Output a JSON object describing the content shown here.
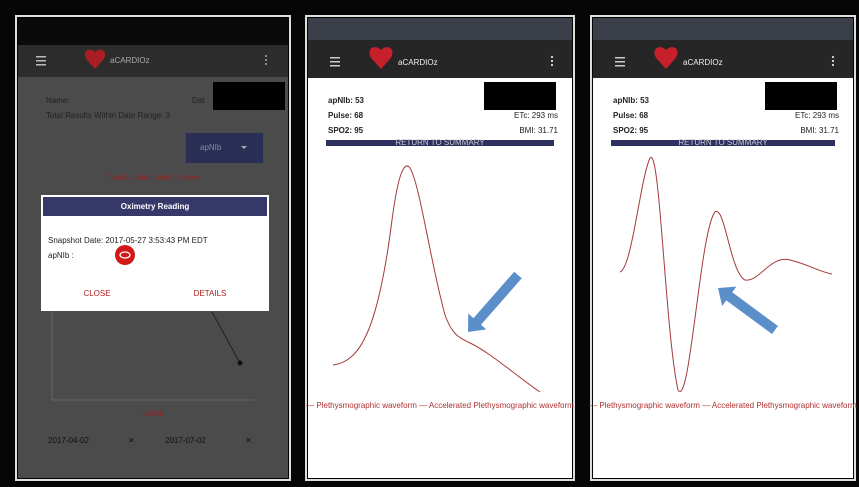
{
  "screens": [
    {
      "app_title": "aCARDIOz",
      "name_label": "Name:",
      "date_label": "Dat",
      "results_label": "Total Results Within Date Range: 3",
      "dropdown": "apNIb",
      "hint": "Touch a data point to view",
      "dialog": {
        "title": "Oximetry Reading",
        "snapshot": "Snapshot Date: 2017-05-27 3:53:43 PM EDT",
        "field": "apNIb :",
        "close": "CLOSE",
        "details": "DETAILS"
      },
      "axis_label": "apNIb",
      "start_date": "2017-04-02",
      "end_date": "2017-07-02",
      "clear": "✕"
    },
    {
      "app_title": "aCARDIOz",
      "stats": [
        "apNIb: 53",
        "Pulse: 68",
        "SPO2: 95"
      ],
      "stats_right": [
        "ETc: 293 ms",
        "BMI: 31.71"
      ],
      "bar_label": "RETURN TO SUMMARY",
      "legend": "— Plethysmographic waveform — Accelerated Plethysmographic waveform"
    },
    {
      "app_title": "aCARDIOz",
      "stats": [
        "apNIb: 53",
        "Pulse: 68",
        "SPO2: 95"
      ],
      "stats_right": [
        "ETc: 293 ms",
        "BMI: 31.71"
      ],
      "bar_label": "RETURN TO SUMMARY",
      "legend": "— Plethysmographic waveform — Accelerated Plethysmographic waveform"
    }
  ]
}
